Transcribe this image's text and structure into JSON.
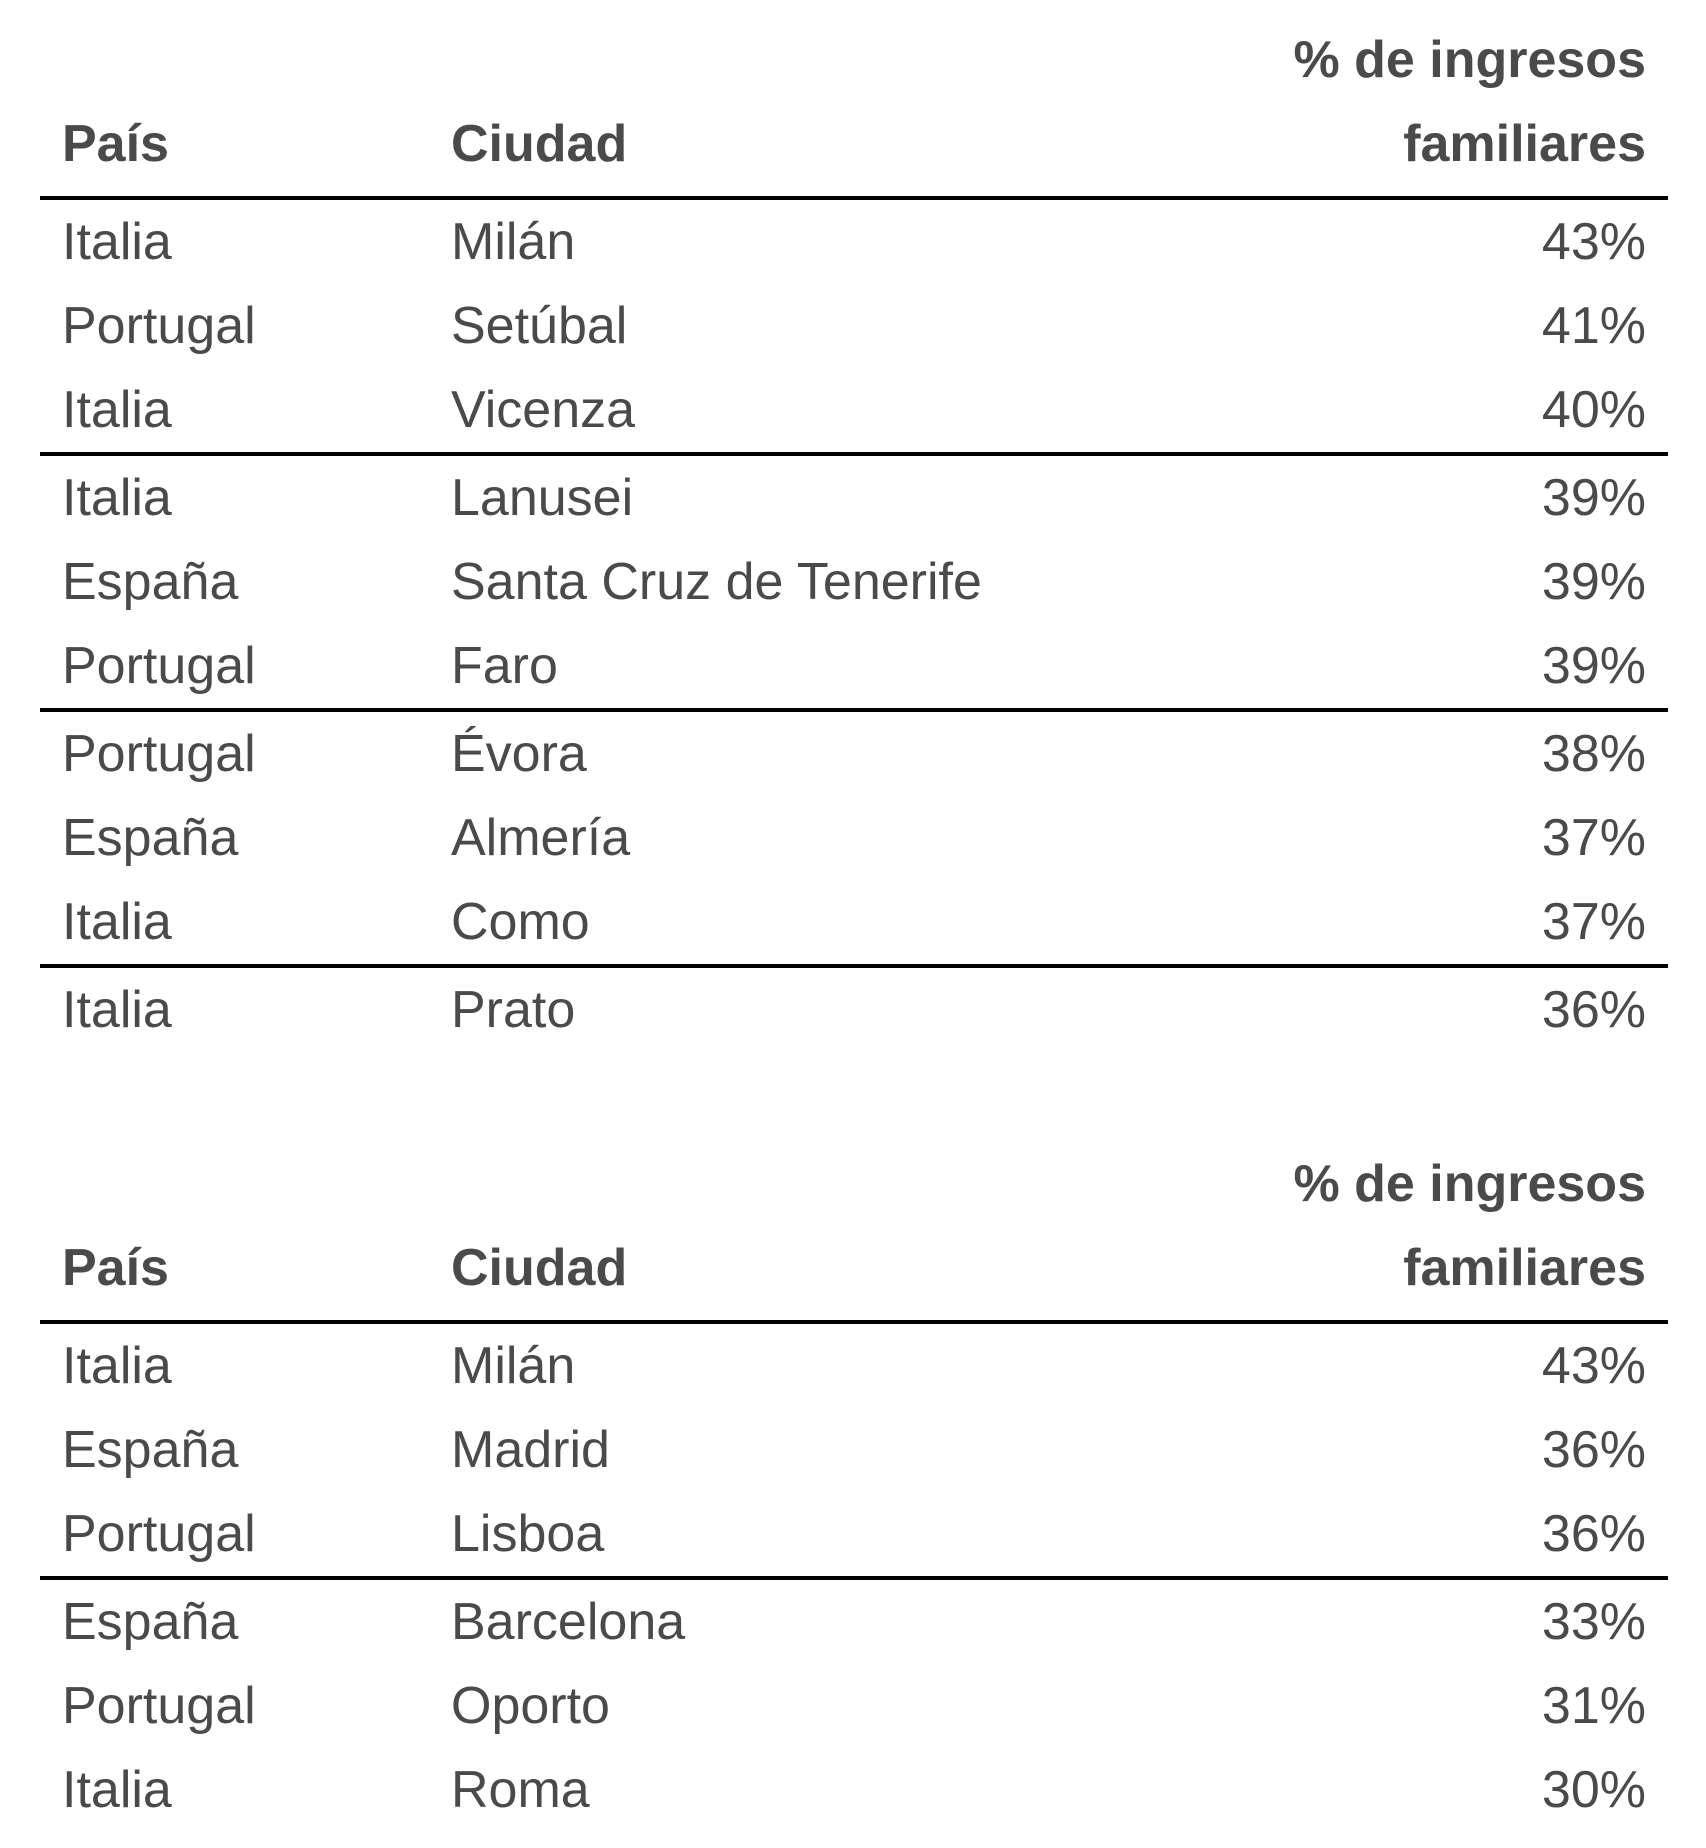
{
  "tables": [
    {
      "headers": {
        "country": "País",
        "city": "Ciudad",
        "pct_line1": "% de ingresos",
        "pct_line2": "familiares"
      },
      "rows": [
        {
          "country": "Italia",
          "city": "Milán",
          "pct": "43%"
        },
        {
          "country": "Portugal",
          "city": "Setúbal",
          "pct": "41%"
        },
        {
          "country": "Italia",
          "city": "Vicenza",
          "pct": "40%"
        },
        {
          "country": "Italia",
          "city": "Lanusei",
          "pct": "39%"
        },
        {
          "country": "España",
          "city": "Santa Cruz de Tenerife",
          "pct": "39%"
        },
        {
          "country": "Portugal",
          "city": "Faro",
          "pct": "39%"
        },
        {
          "country": "Portugal",
          "city": "Évora",
          "pct": "38%"
        },
        {
          "country": "España",
          "city": "Almería",
          "pct": "37%"
        },
        {
          "country": "Italia",
          "city": "Como",
          "pct": "37%"
        },
        {
          "country": "Italia",
          "city": "Prato",
          "pct": "36%"
        }
      ]
    },
    {
      "headers": {
        "country": "País",
        "city": "Ciudad",
        "pct_line1": "% de ingresos",
        "pct_line2": "familiares"
      },
      "rows": [
        {
          "country": "Italia",
          "city": "Milán",
          "pct": "43%"
        },
        {
          "country": "España",
          "city": "Madrid",
          "pct": "36%"
        },
        {
          "country": "Portugal",
          "city": "Lisboa",
          "pct": "36%"
        },
        {
          "country": "España",
          "city": "Barcelona",
          "pct": "33%"
        },
        {
          "country": "Portugal",
          "city": "Oporto",
          "pct": "31%"
        },
        {
          "country": "Italia",
          "city": "Roma",
          "pct": "30%"
        }
      ]
    }
  ]
}
